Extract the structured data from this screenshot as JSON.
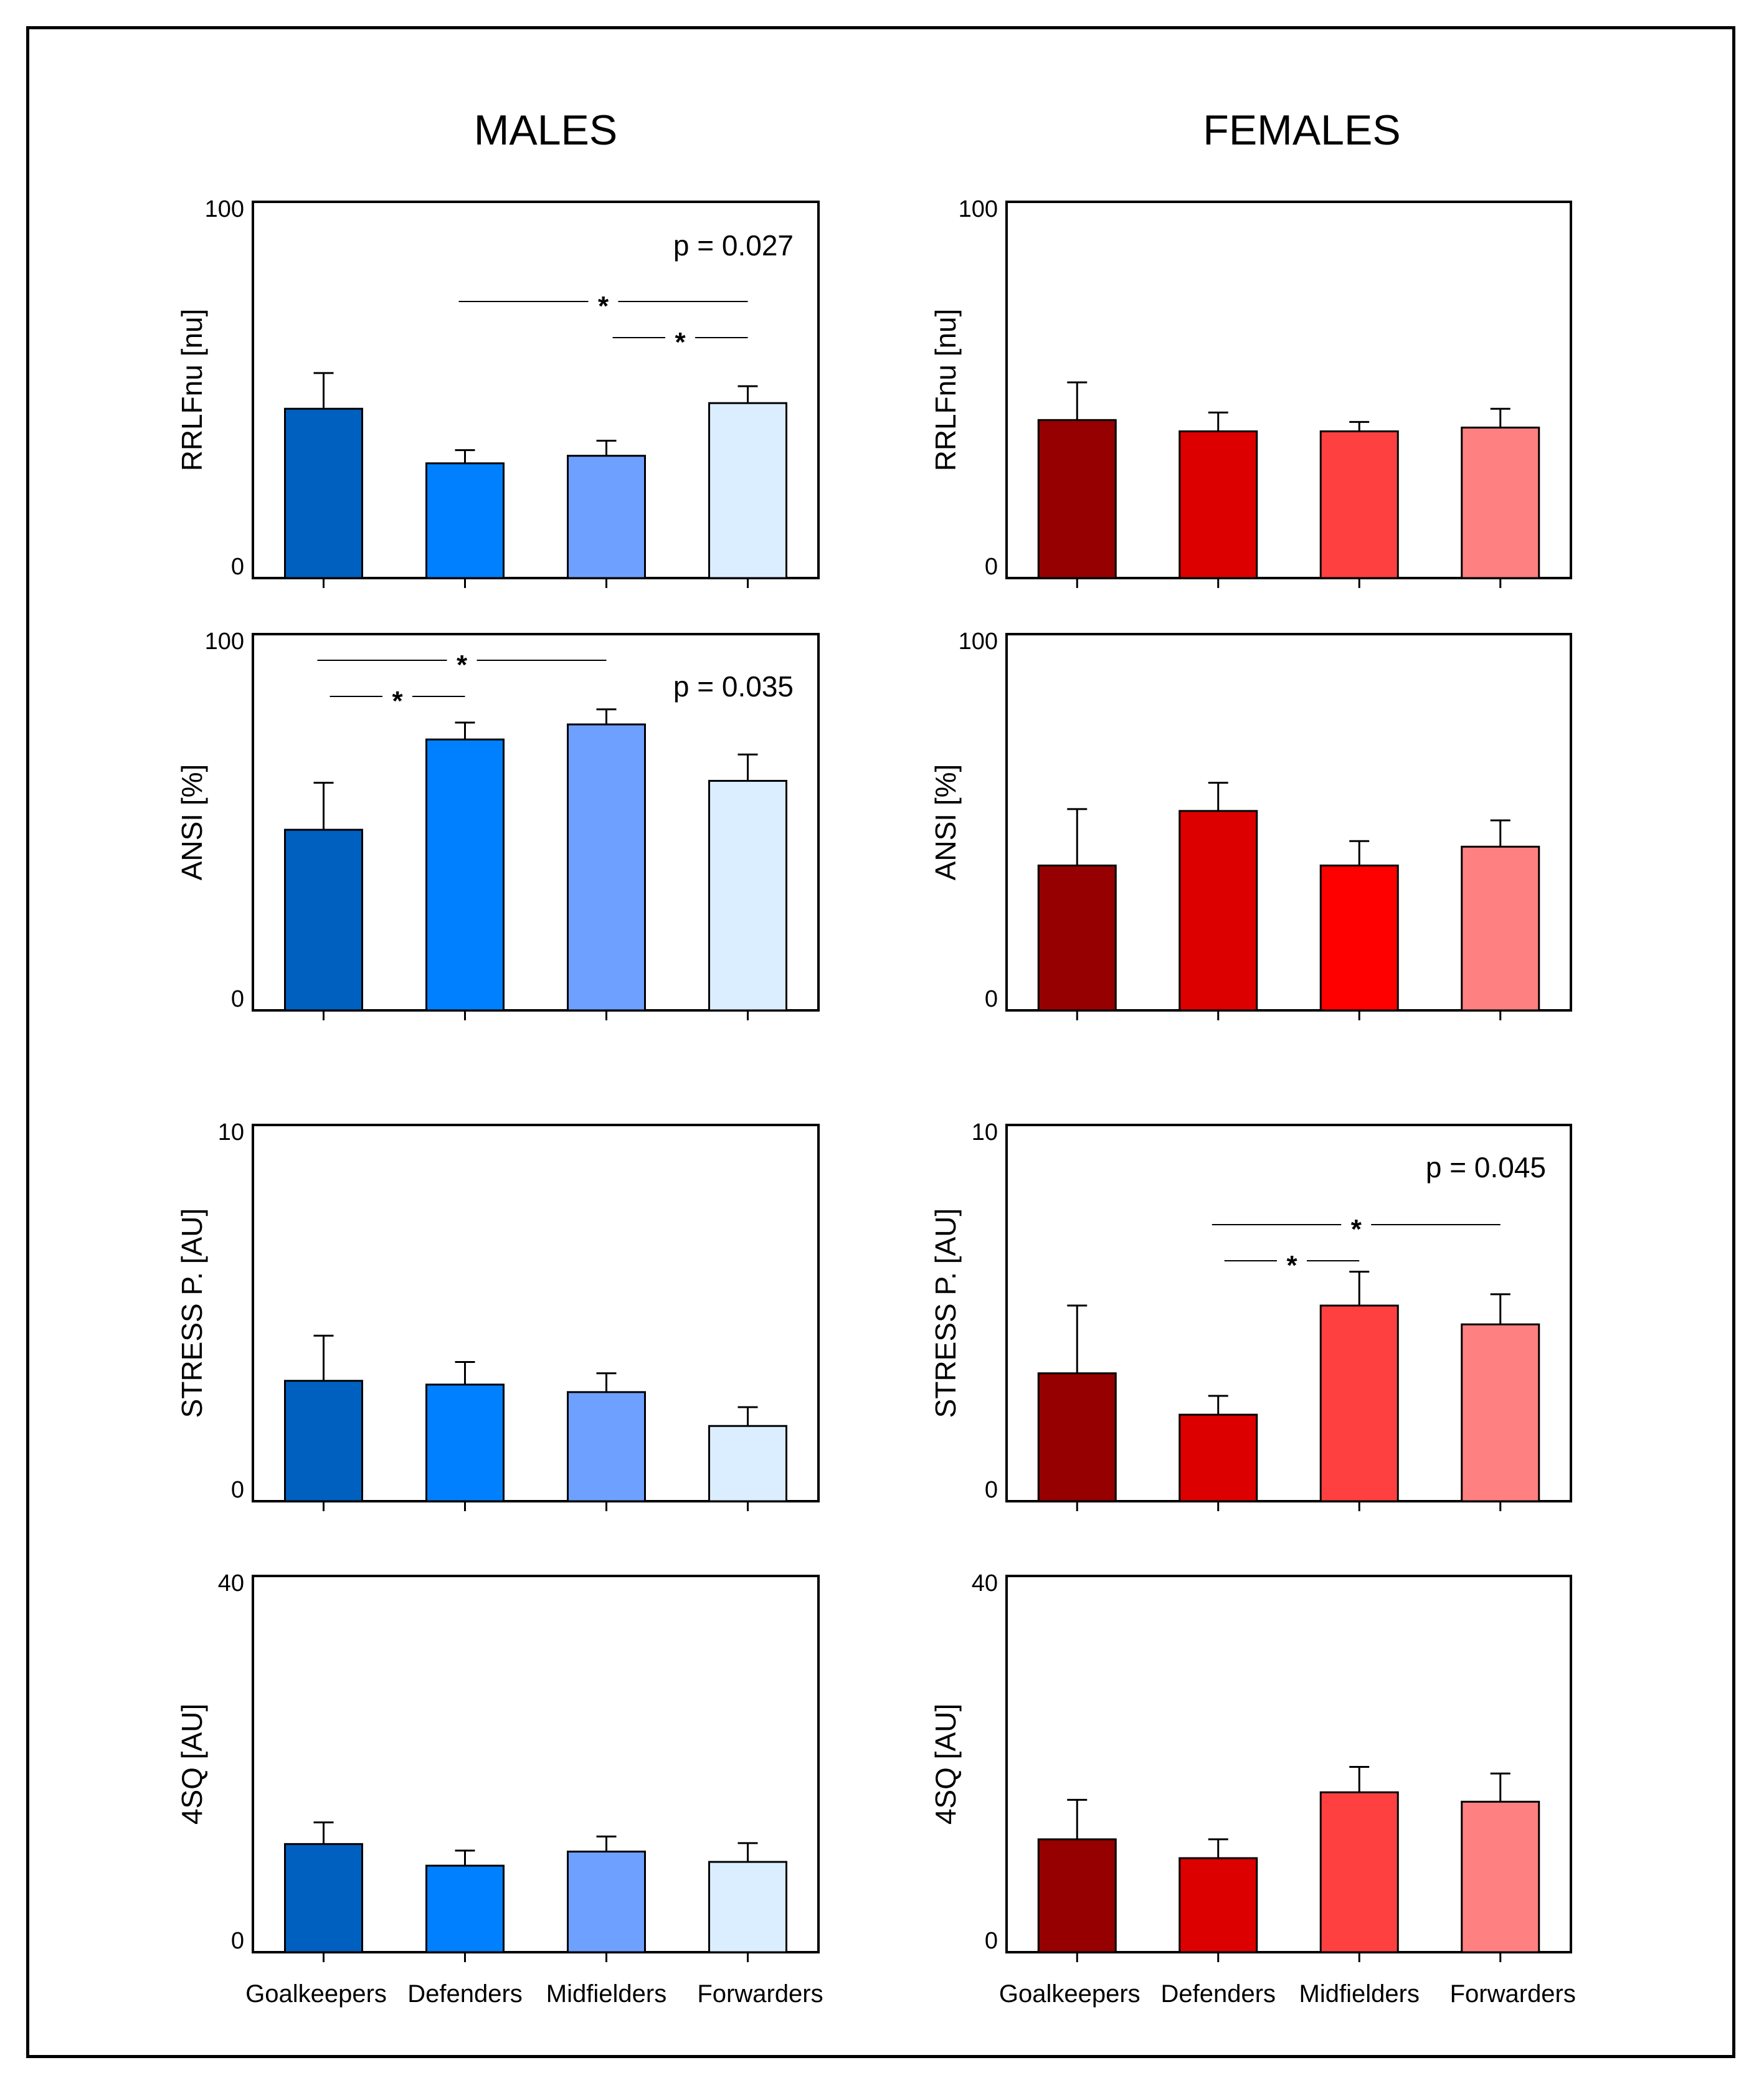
{
  "columns": [
    {
      "title": "MALES"
    },
    {
      "title": "FEMALES"
    }
  ],
  "categories": [
    "Goalkeepers",
    "Defenders",
    "Midfielders",
    "Forwarders"
  ],
  "colors": {
    "males": [
      "#0060C0",
      "#0080FF",
      "#6EA0FF",
      "#DAEEFF"
    ],
    "females": [
      "#960000",
      "#DC0000",
      "#FF4040",
      "#FF8080"
    ],
    "females_ansi": [
      "#960000",
      "#DC0000",
      "#FF0000",
      "#FF8080"
    ]
  },
  "chart_data": [
    {
      "type": "bar",
      "group": "MALES",
      "ylabel": "RRLFnu [nu]",
      "ylim": [
        0,
        100
      ],
      "ytick_labels": [
        "0",
        "100"
      ],
      "categories": [
        "Goalkeepers",
        "Defenders",
        "Midfielders",
        "Forwarders"
      ],
      "values": [
        45,
        30.5,
        32.5,
        46.5
      ],
      "errors": [
        9.5,
        3.5,
        4,
        4.5
      ],
      "pvalue": "p =  0.027",
      "significance": [
        {
          "from": 1,
          "to": 3,
          "label": "*"
        },
        {
          "from": 2,
          "to": 3,
          "label": "*"
        }
      ]
    },
    {
      "type": "bar",
      "group": "FEMALES",
      "ylabel": "RRLFnu [nu]",
      "ylim": [
        0,
        100
      ],
      "ytick_labels": [
        "0",
        "100"
      ],
      "categories": [
        "Goalkeepers",
        "Defenders",
        "Midfielders",
        "Forwarders"
      ],
      "values": [
        42,
        39,
        39,
        40
      ],
      "errors": [
        10,
        5,
        2.5,
        5
      ],
      "pvalue": "",
      "significance": []
    },
    {
      "type": "bar",
      "group": "MALES",
      "ylabel": "ANSI [%]",
      "ylim": [
        0,
        100
      ],
      "ytick_labels": [
        "0",
        "100"
      ],
      "categories": [
        "Goalkeepers",
        "Defenders",
        "Midfielders",
        "Forwarders"
      ],
      "values": [
        48,
        72,
        76,
        61
      ],
      "errors": [
        12.5,
        4.5,
        4,
        7
      ],
      "pvalue": "p = 0.035",
      "significance": [
        {
          "from": 0,
          "to": 2,
          "label": "*"
        },
        {
          "from": 0,
          "to": 1,
          "label": "*"
        }
      ]
    },
    {
      "type": "bar",
      "group": "FEMALES",
      "ylabel": "ANSI [%]",
      "ylim": [
        0,
        100
      ],
      "ytick_labels": [
        "0",
        "100"
      ],
      "categories": [
        "Goalkeepers",
        "Defenders",
        "Midfielders",
        "Forwarders"
      ],
      "values": [
        38.5,
        53,
        38.5,
        43.5
      ],
      "errors": [
        15,
        7.5,
        6.5,
        7
      ],
      "pvalue": "",
      "significance": []
    },
    {
      "type": "bar",
      "group": "MALES",
      "ylabel": "STRESS P.  [AU]",
      "ylim": [
        0,
        10
      ],
      "ytick_labels": [
        "0",
        "10"
      ],
      "categories": [
        "Goalkeepers",
        "Defenders",
        "Midfielders",
        "Forwarders"
      ],
      "values": [
        3.2,
        3.1,
        2.9,
        2.0
      ],
      "errors": [
        1.2,
        0.6,
        0.5,
        0.5
      ],
      "pvalue": "",
      "significance": []
    },
    {
      "type": "bar",
      "group": "FEMALES",
      "ylabel": "STRESS P.  [AU]",
      "ylim": [
        0,
        10
      ],
      "ytick_labels": [
        "0",
        "10"
      ],
      "categories": [
        "Goalkeepers",
        "Defenders",
        "Midfielders",
        "Forwarders"
      ],
      "values": [
        3.4,
        2.3,
        5.2,
        4.7
      ],
      "errors": [
        1.8,
        0.5,
        0.9,
        0.8
      ],
      "pvalue": "p = 0.045",
      "significance": [
        {
          "from": 1,
          "to": 3,
          "label": "*"
        },
        {
          "from": 1,
          "to": 2,
          "label": "*"
        }
      ]
    },
    {
      "type": "bar",
      "group": "MALES",
      "ylabel": "4SQ [AU]",
      "ylim": [
        0,
        40
      ],
      "ytick_labels": [
        "0",
        "40"
      ],
      "categories": [
        "Goalkeepers",
        "Defenders",
        "Midfielders",
        "Forwarders"
      ],
      "values": [
        11.5,
        9.2,
        10.7,
        9.6
      ],
      "errors": [
        2.3,
        1.6,
        1.6,
        2.0
      ],
      "pvalue": "",
      "significance": []
    },
    {
      "type": "bar",
      "group": "FEMALES",
      "ylabel": "4SQ [AU]",
      "ylim": [
        0,
        40
      ],
      "ytick_labels": [
        "0",
        "40"
      ],
      "categories": [
        "Goalkeepers",
        "Defenders",
        "Midfielders",
        "Forwarders"
      ],
      "values": [
        12,
        10,
        17,
        16
      ],
      "errors": [
        4.2,
        2.0,
        2.7,
        3.0
      ],
      "pvalue": "",
      "significance": []
    }
  ]
}
